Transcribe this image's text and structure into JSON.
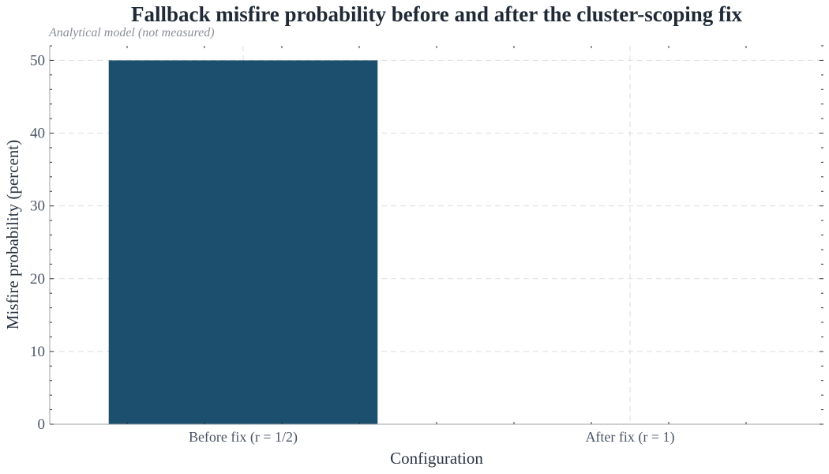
{
  "chart_data": {
    "type": "bar",
    "title": "Fallback misfire probability before and after the cluster-scoping fix",
    "subtitle": "Analytical model (not measured)",
    "xlabel": "Configuration",
    "ylabel": "Misfire probability (percent)",
    "categories": [
      "Before fix (r = 1/2)",
      "After fix (r = 1)"
    ],
    "values": [
      50,
      0
    ],
    "ylim": [
      0,
      52
    ],
    "yticks": [
      0,
      10,
      20,
      30,
      40,
      50
    ],
    "grid": true,
    "colors": {
      "bar": "#1c4e6e",
      "title": "#1f2a36",
      "grid": "#dddddd"
    }
  }
}
